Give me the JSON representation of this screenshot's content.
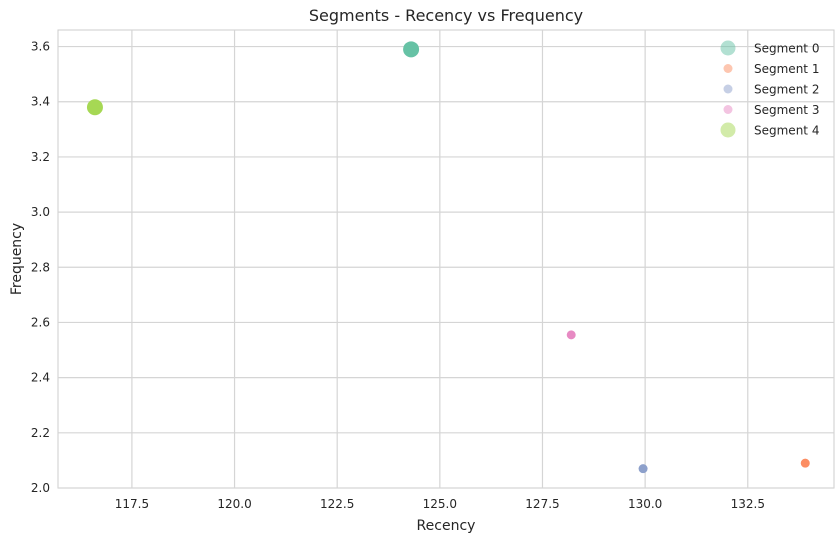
{
  "chart_data": {
    "type": "scatter",
    "title": "Segments - Recency vs Frequency",
    "xlabel": "Recency",
    "ylabel": "Frequency",
    "xlim": [
      115.7,
      134.6
    ],
    "ylim": [
      2.0,
      3.66
    ],
    "xticks": [
      "117.5",
      "120.0",
      "122.5",
      "125.0",
      "127.5",
      "130.0",
      "132.5"
    ],
    "xtick_values": [
      117.5,
      120.0,
      122.5,
      125.0,
      127.5,
      130.0,
      132.5
    ],
    "yticks": [
      "2.0",
      "2.2",
      "2.4",
      "2.6",
      "2.8",
      "3.0",
      "3.2",
      "3.4",
      "3.6"
    ],
    "ytick_values": [
      2.0,
      2.2,
      2.4,
      2.6,
      2.8,
      3.0,
      3.2,
      3.4,
      3.6
    ],
    "grid": true,
    "legend_position": "top-right",
    "series": [
      {
        "name": "Segment 0",
        "color": "#66c2a5",
        "x": [
          124.3
        ],
        "y": [
          3.59
        ],
        "size": "large"
      },
      {
        "name": "Segment 1",
        "color": "#fc8d62",
        "x": [
          133.9
        ],
        "y": [
          2.09
        ],
        "size": "small"
      },
      {
        "name": "Segment 2",
        "color": "#8da0cb",
        "x": [
          129.95
        ],
        "y": [
          2.07
        ],
        "size": "small"
      },
      {
        "name": "Segment 3",
        "color": "#e78ac3",
        "x": [
          128.2
        ],
        "y": [
          2.555
        ],
        "size": "small"
      },
      {
        "name": "Segment 4",
        "color": "#a6d854",
        "x": [
          116.6
        ],
        "y": [
          3.38
        ],
        "size": "large"
      }
    ]
  }
}
